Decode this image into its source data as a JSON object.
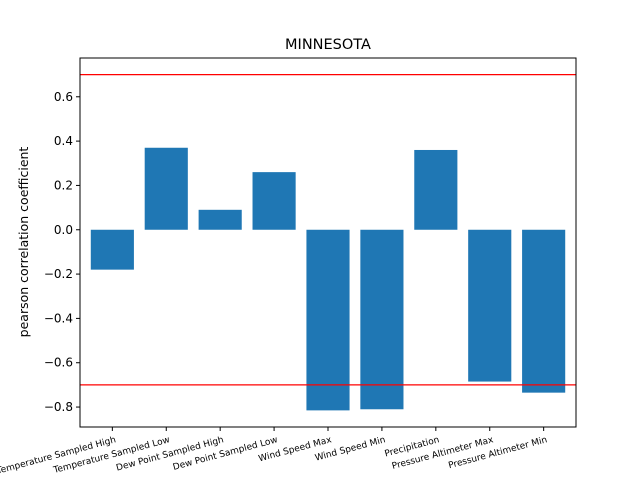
{
  "chart_data": {
    "type": "bar",
    "title": "MINNESOTA",
    "xlabel": "",
    "ylabel": "pearson correlation coefficient",
    "categories": [
      "Temperature Sampled High",
      "Temperature Sampled Low",
      "Dew Point Sampled High",
      "Dew Point Sampled Low",
      "Wind Speed Max",
      "Wind Speed Min",
      "Precipitation",
      "Pressure Altimeter Max",
      "Pressure Altimeter Min"
    ],
    "values": [
      -0.18,
      0.37,
      0.09,
      0.26,
      -0.815,
      -0.81,
      0.36,
      -0.685,
      -0.735
    ],
    "ylim": [
      -0.89,
      0.775
    ],
    "yticks": [
      -0.8,
      -0.6,
      -0.4,
      -0.2,
      0.0,
      0.2,
      0.4,
      0.6
    ],
    "ytick_labels": [
      "−0.8",
      "−0.6",
      "−0.4",
      "−0.2",
      "0.0",
      "0.2",
      "0.4",
      "0.6"
    ],
    "reference_lines": [
      0.7,
      -0.7
    ],
    "bar_color": "#1f77b4",
    "reference_line_color": "#ff0000",
    "grid": false,
    "legend": "none"
  }
}
